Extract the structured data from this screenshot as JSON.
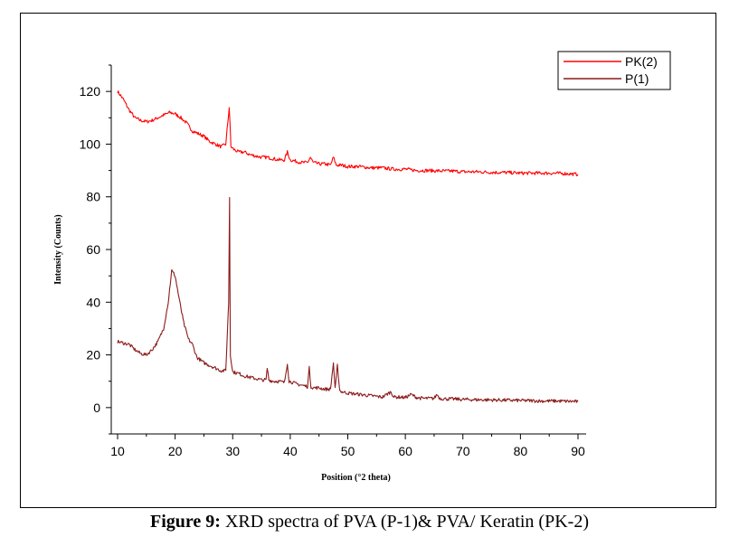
{
  "caption": {
    "label": "Figure 9:",
    "text": " XRD spectra of PVA (P-1)& PVA/ Keratin (PK-2)"
  },
  "chart_data": {
    "type": "line",
    "xlabel": "Position (°2 theta)",
    "ylabel": "Intensity (Counts)",
    "xlim": [
      10,
      90
    ],
    "ylim": [
      -10,
      130
    ],
    "xticks": [
      10,
      20,
      30,
      40,
      50,
      60,
      70,
      80,
      90
    ],
    "yticks": [
      0,
      20,
      40,
      60,
      80,
      100,
      120
    ],
    "legend_position": "top-right",
    "series": [
      {
        "name": "PK(2)",
        "color": "#ff0000",
        "x": [
          10,
          11,
          12,
          13,
          14,
          15,
          16,
          17,
          18,
          19,
          20,
          21,
          22,
          23,
          24,
          25,
          26,
          27,
          28,
          28.8,
          29.4,
          29.7,
          30.2,
          31,
          32,
          33,
          34,
          35,
          36,
          37,
          38,
          39,
          39.5,
          40,
          41,
          42,
          43,
          43.5,
          44,
          45,
          46,
          47,
          47.5,
          48,
          49,
          50,
          52,
          54,
          56,
          58,
          60,
          62,
          64,
          66,
          68,
          70,
          72,
          75,
          78,
          80,
          82,
          85,
          88,
          90
        ],
        "values": [
          120,
          117,
          113,
          110,
          109,
          108.5,
          109,
          110,
          111,
          112,
          111.5,
          110,
          108,
          105,
          104,
          103,
          101,
          100,
          99,
          100,
          114,
          99,
          98,
          97,
          97,
          96,
          95.5,
          95,
          95,
          94.5,
          94,
          94,
          97,
          94,
          93.5,
          93,
          93,
          95,
          93,
          92.5,
          92.5,
          92,
          95,
          92,
          92,
          91.5,
          91.5,
          91,
          91,
          90.5,
          90.5,
          90,
          90,
          89.8,
          89.8,
          89.5,
          89.5,
          89.3,
          89.2,
          89,
          89,
          89,
          88.8,
          88.5
        ]
      },
      {
        "name": "P(1)",
        "color": "#8b1a1a",
        "x": [
          10,
          11,
          12,
          13,
          14,
          15,
          16,
          17,
          18,
          18.8,
          19.4,
          20,
          20.8,
          21.5,
          22.3,
          23,
          23.8,
          25,
          26,
          27,
          28,
          28.8,
          29.3,
          29.45,
          29.6,
          30,
          31,
          32,
          33,
          34,
          35,
          35.8,
          36,
          36.3,
          37,
          38,
          39,
          39.5,
          39.8,
          40.5,
          41,
          42,
          43,
          43.3,
          43.6,
          44,
          45,
          46,
          47,
          47.5,
          47.8,
          48.2,
          48.6,
          49,
          50,
          52,
          54,
          56,
          57.5,
          58,
          59,
          60,
          61,
          62,
          63,
          64,
          65,
          65.5,
          66,
          67,
          68,
          70,
          72,
          75,
          78,
          80,
          82,
          84,
          86,
          88,
          90
        ],
        "values": [
          25,
          24.5,
          24,
          22,
          20.5,
          20,
          22,
          25,
          30,
          40,
          52,
          50,
          40,
          32,
          26,
          24,
          19,
          17,
          16,
          15,
          14,
          14,
          40,
          80,
          20,
          13.5,
          13,
          12,
          11.5,
          11,
          10.5,
          10.5,
          15,
          10.5,
          10,
          10,
          9.5,
          17,
          10,
          9.5,
          9,
          8.5,
          8,
          15,
          8,
          7.5,
          7.5,
          7,
          7,
          17,
          7,
          16,
          6.5,
          6,
          5.5,
          5,
          4.5,
          4,
          6,
          4,
          4,
          3.8,
          5,
          3.8,
          3.5,
          3.5,
          3.5,
          5,
          3.5,
          3.3,
          3.3,
          3.1,
          3,
          2.9,
          2.8,
          2.7,
          2.6,
          2.5,
          2.5,
          2.4,
          2.3
        ]
      }
    ]
  }
}
